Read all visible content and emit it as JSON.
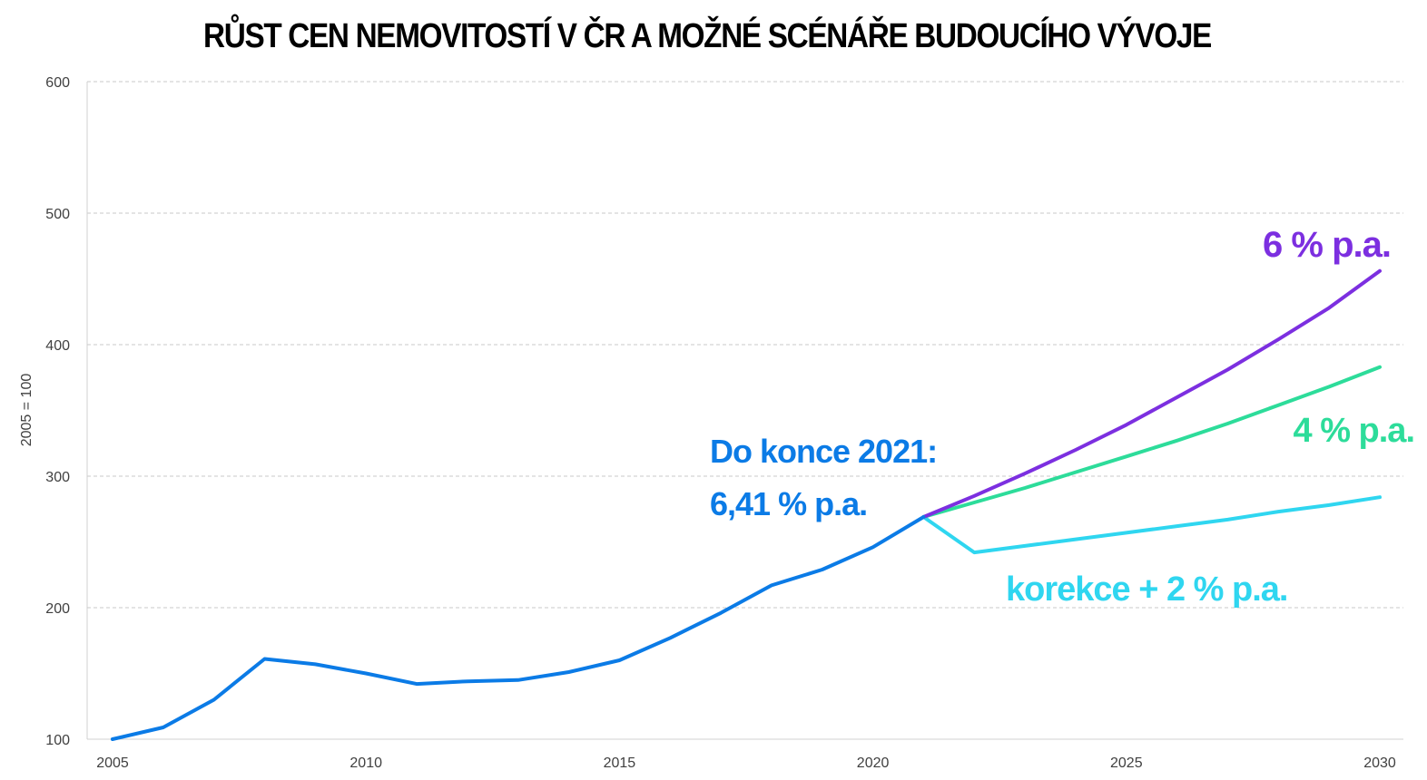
{
  "chart_data": {
    "type": "line",
    "title": "RŮST CEN NEMOVITOSTÍ V ČR A MOŽNÉ SCÉNÁŘE BUDOUCÍHO VÝVOJE",
    "ylabel": "2005 = 100",
    "xlabel": "",
    "xlim": [
      2005,
      2030
    ],
    "ylim": [
      100,
      600
    ],
    "x_ticks": [
      2005,
      2010,
      2015,
      2020,
      2025,
      2030
    ],
    "y_ticks": [
      100,
      200,
      300,
      400,
      500,
      600
    ],
    "grid": true,
    "series": [
      {
        "color": "#0b7be6",
        "x": [
          2005,
          2006,
          2007,
          2008,
          2009,
          2010,
          2011,
          2012,
          2013,
          2014,
          2015,
          2016,
          2017,
          2018,
          2019,
          2020,
          2021
        ],
        "values": [
          100,
          109,
          130,
          161,
          157,
          150,
          142,
          144,
          145,
          151,
          160,
          177,
          196,
          217,
          229,
          246,
          269
        ]
      },
      {
        "color": "#7c2fe0",
        "x": [
          2021,
          2022,
          2023,
          2024,
          2025,
          2026,
          2027,
          2028,
          2029,
          2030
        ],
        "values": [
          269,
          285,
          302,
          320,
          339,
          360,
          381,
          404,
          428,
          456
        ]
      },
      {
        "color": "#2ddc9a",
        "x": [
          2021,
          2022,
          2023,
          2024,
          2025,
          2026,
          2027,
          2028,
          2029,
          2030
        ],
        "values": [
          269,
          280,
          291,
          303,
          315,
          327,
          340,
          354,
          368,
          383
        ]
      },
      {
        "color": "#2fd6f0",
        "x": [
          2021,
          2022,
          2023,
          2024,
          2025,
          2026,
          2027,
          2028,
          2029,
          2030
        ],
        "values": [
          269,
          242,
          247,
          252,
          257,
          262,
          267,
          273,
          278,
          284
        ]
      }
    ],
    "annotations": [
      {
        "lines": [
          "Do konce 2021:",
          "6,41 % p.a."
        ],
        "color": "#0b7be6"
      },
      {
        "lines": [
          "6 % p.a."
        ],
        "color": "#7c2fe0"
      },
      {
        "lines": [
          "4 % p.a."
        ],
        "color": "#2ddc9a"
      },
      {
        "lines": [
          "korekce + 2 % p.a."
        ],
        "color": "#2fd6f0"
      }
    ]
  }
}
